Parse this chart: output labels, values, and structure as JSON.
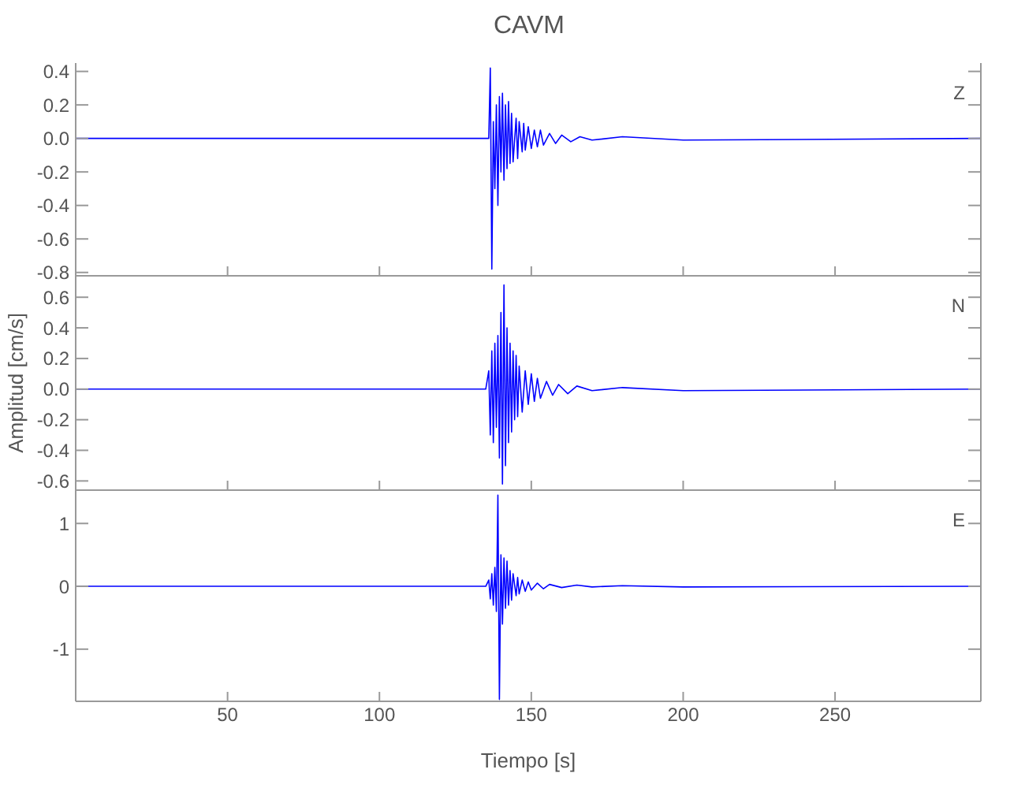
{
  "chart_data": [
    {
      "type": "line",
      "title": "CAVM",
      "annotations": [
        "Z"
      ],
      "tick_labels": "y",
      "xlim": [
        0,
        298
      ],
      "xticks": [
        50,
        100,
        150,
        200,
        250
      ],
      "ylim": [
        -0.82,
        0.45
      ],
      "yticks": [
        -0.8,
        -0.6,
        -0.4,
        -0.2,
        {
          "value": 0,
          "label": "0.0"
        },
        0.2,
        0.4
      ],
      "color": "#0000ff",
      "x": [
        0,
        136,
        136.5,
        137,
        137.5,
        138,
        138.5,
        139,
        139.5,
        140,
        140.5,
        141,
        141.5,
        142,
        142.5,
        143,
        143.5,
        144,
        145,
        145.5,
        146,
        147,
        147.5,
        148,
        149,
        150,
        151,
        152,
        153,
        154,
        156,
        158,
        160,
        163,
        166,
        170,
        180,
        200,
        298
      ],
      "values": [
        0,
        0,
        0.42,
        -0.78,
        0.1,
        -0.3,
        0.2,
        -0.4,
        0.25,
        -0.2,
        0.27,
        -0.25,
        0.2,
        -0.18,
        0.22,
        -0.15,
        0.15,
        -0.14,
        0.12,
        -0.12,
        0.1,
        -0.08,
        0.09,
        -0.07,
        0.07,
        -0.06,
        0.05,
        -0.05,
        0.05,
        -0.04,
        0.03,
        -0.03,
        0.02,
        -0.02,
        0.01,
        -0.01,
        0.01,
        -0.01,
        0
      ]
    },
    {
      "type": "line",
      "ylabel": "Amplitud [cm/s]",
      "annotations": [
        "N"
      ],
      "tick_labels": "y",
      "xlim": [
        0,
        298
      ],
      "xticks": [
        50,
        100,
        150,
        200,
        250
      ],
      "ylim": [
        -0.66,
        0.74
      ],
      "yticks": [
        -0.6,
        -0.4,
        -0.2,
        {
          "value": 0,
          "label": "0.0"
        },
        0.2,
        0.4,
        0.6
      ],
      "color": "#0000ff",
      "x": [
        0,
        135,
        136,
        136.5,
        137,
        137.5,
        138,
        138.5,
        139,
        139.5,
        140,
        140.5,
        141,
        141.5,
        142,
        142.5,
        143,
        143.5,
        144,
        144.5,
        145,
        145.5,
        146,
        147,
        148,
        149,
        150,
        151,
        152,
        153,
        155,
        157,
        159,
        162,
        165,
        170,
        180,
        200,
        298
      ],
      "values": [
        0,
        0,
        0.12,
        -0.3,
        0.25,
        -0.35,
        0.3,
        -0.25,
        0.35,
        -0.45,
        0.5,
        -0.62,
        0.68,
        -0.5,
        0.4,
        -0.35,
        0.3,
        -0.28,
        0.25,
        -0.2,
        0.22,
        -0.18,
        0.15,
        -0.15,
        0.12,
        -0.1,
        0.1,
        -0.08,
        0.07,
        -0.06,
        0.05,
        -0.04,
        0.03,
        -0.03,
        0.02,
        -0.01,
        0.01,
        -0.01,
        0
      ]
    },
    {
      "type": "line",
      "xlabel": "Tiempo [s]",
      "annotations": [
        "E"
      ],
      "xlim": [
        0,
        298
      ],
      "xticks": [
        50,
        100,
        150,
        200,
        250
      ],
      "ylim": [
        -1.83,
        1.53
      ],
      "yticks": [
        -1,
        0,
        1
      ],
      "color": "#0000ff",
      "x": [
        0,
        135,
        136,
        136.5,
        137,
        137.5,
        138,
        138.5,
        139,
        139.5,
        140,
        140.5,
        141,
        141.5,
        142,
        142.5,
        143,
        143.5,
        144,
        145,
        145.5,
        146,
        147,
        148,
        149,
        150,
        152,
        154,
        156,
        160,
        165,
        170,
        180,
        200,
        298
      ],
      "values": [
        0,
        0,
        0.1,
        -0.2,
        0.2,
        -0.3,
        0.3,
        -0.4,
        1.45,
        -1.8,
        0.5,
        -0.6,
        0.45,
        -0.35,
        0.4,
        -0.3,
        0.25,
        -0.22,
        0.2,
        -0.15,
        0.14,
        -0.12,
        0.1,
        -0.08,
        0.07,
        -0.06,
        0.05,
        -0.04,
        0.03,
        -0.02,
        0.02,
        -0.01,
        0.01,
        -0.01,
        0
      ]
    }
  ]
}
